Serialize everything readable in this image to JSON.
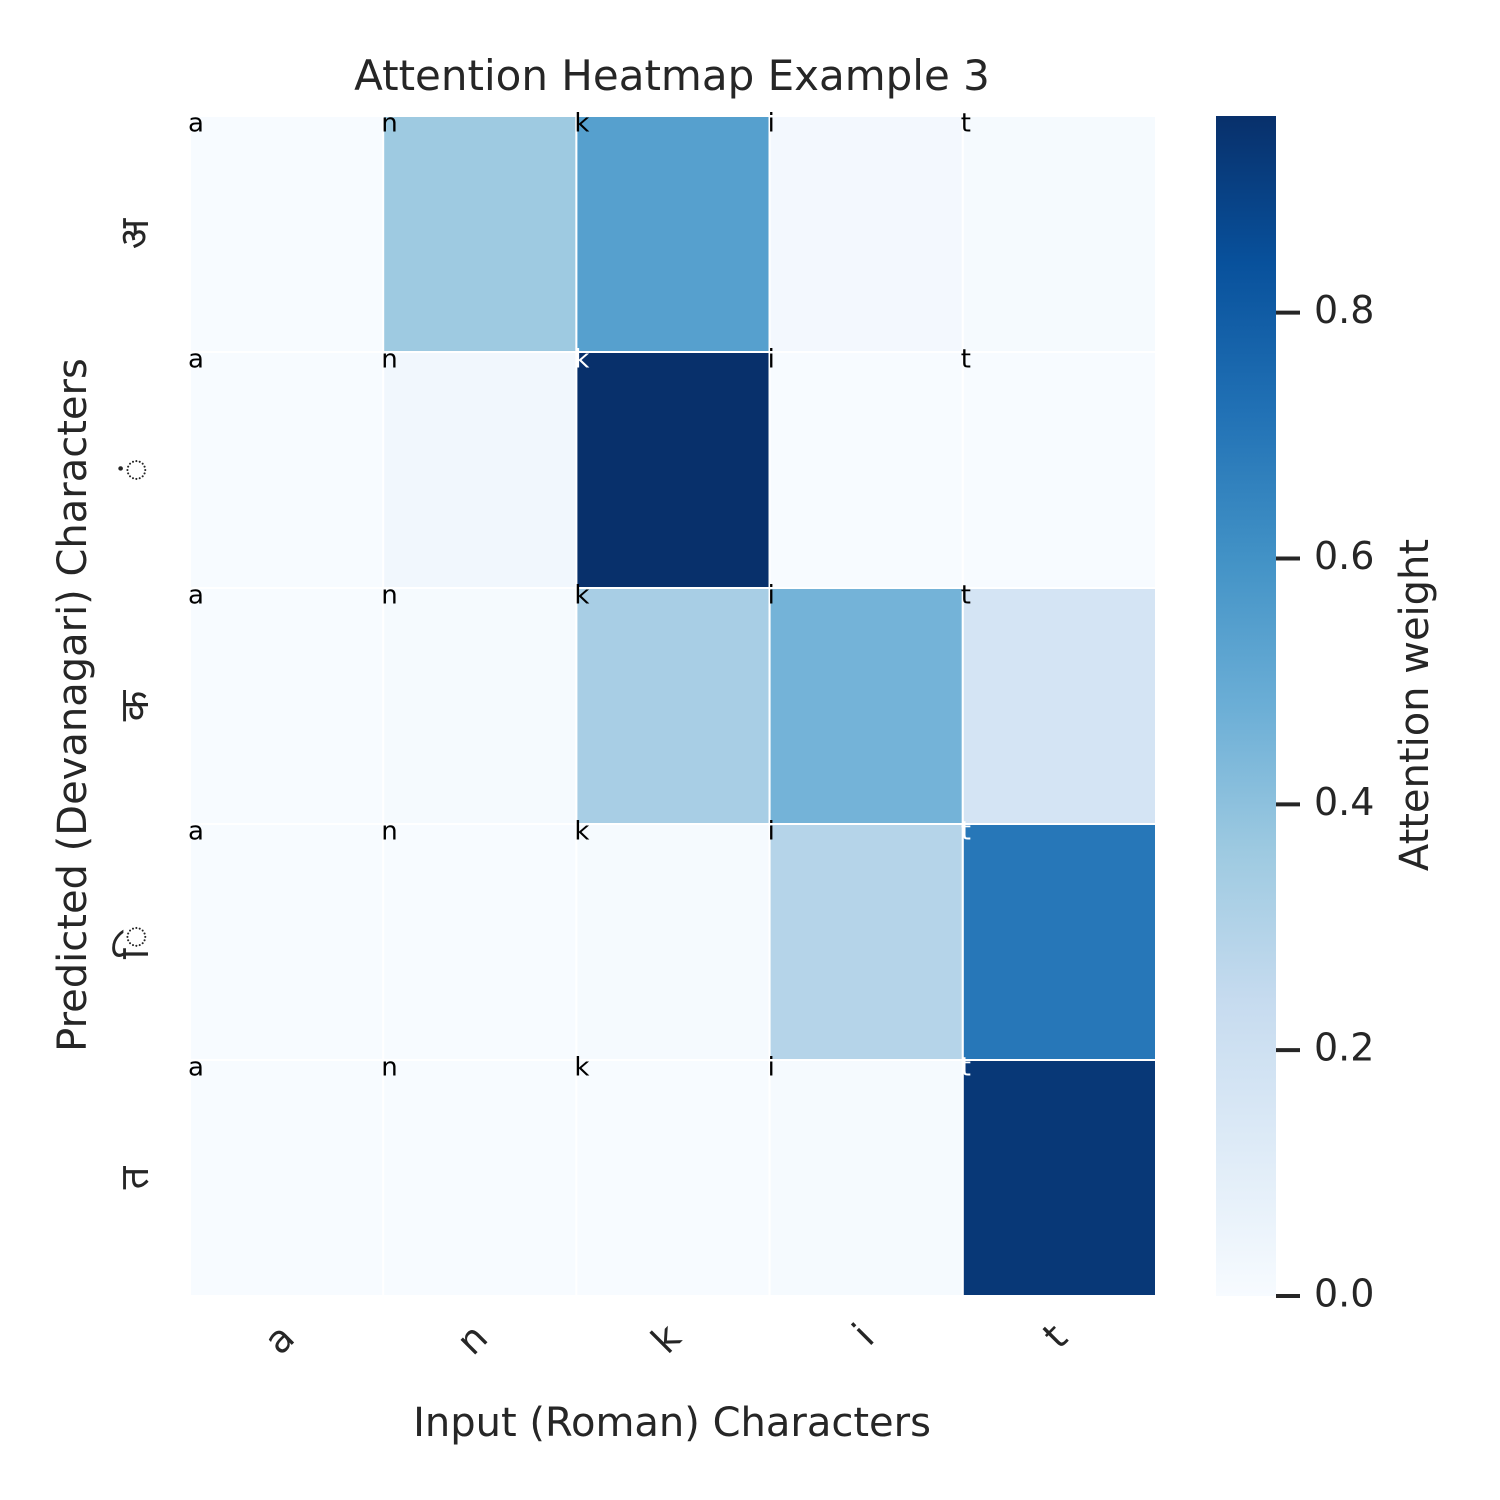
{
  "chart_data": {
    "type": "heatmap",
    "title": "Attention Heatmap Example 3",
    "xlabel": "Input (Roman) Characters",
    "ylabel": "Predicted (Devanagari) Characters",
    "x_categories": [
      "a",
      "n",
      "k",
      "i",
      "t"
    ],
    "y_categories": [
      "अ",
      "ं",
      "क",
      "ि",
      "त"
    ],
    "values": [
      [
        0.0,
        0.36,
        0.54,
        0.02,
        0.01
      ],
      [
        0.0,
        0.03,
        0.96,
        0.0,
        0.0
      ],
      [
        0.0,
        0.01,
        0.33,
        0.46,
        0.17
      ],
      [
        0.0,
        0.0,
        0.01,
        0.29,
        0.7
      ],
      [
        0.0,
        0.0,
        0.0,
        0.01,
        0.93
      ]
    ],
    "colorbar": {
      "label": "Attention weight",
      "range": [
        0.0,
        0.96
      ],
      "ticks": [
        0.0,
        0.2,
        0.4,
        0.6,
        0.8
      ],
      "tick_labels": [
        "0.0",
        "0.2",
        "0.4",
        "0.6",
        "0.8"
      ],
      "colormap": "Blues"
    },
    "grid": false
  }
}
